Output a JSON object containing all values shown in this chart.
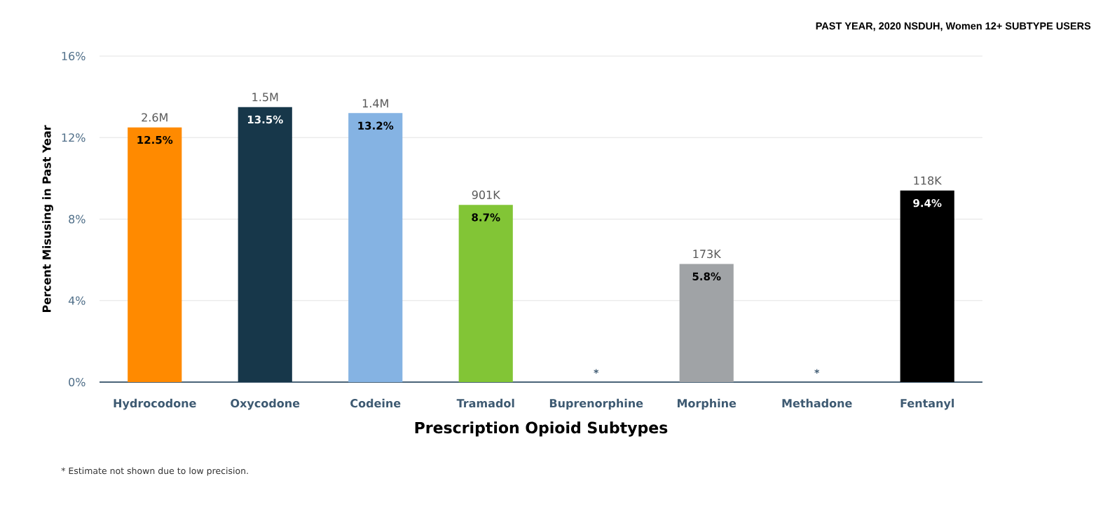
{
  "chart_data": {
    "type": "bar",
    "subtitle": "PAST YEAR, 2020 NSDUH, Women 12+ SUBTYPE USERS",
    "xlabel": "Prescription Opioid Subtypes",
    "ylabel": "Percent Misusing in Past Year",
    "categories": [
      "Hydrocodone",
      "Oxycodone",
      "Codeine",
      "Tramadol",
      "Buprenorphine",
      "Morphine",
      "Methadone",
      "Fentanyl"
    ],
    "values": [
      12.5,
      13.5,
      13.2,
      8.7,
      null,
      5.8,
      null,
      9.4
    ],
    "colors": [
      "#ff8a00",
      "#17374a",
      "#85b3e3",
      "#82c536",
      null,
      "#a0a3a6",
      null,
      "#000000"
    ],
    "value_labels": [
      "12.5%",
      "13.5%",
      "13.2%",
      "8.7%",
      "*",
      "5.8%",
      "*",
      "9.4%"
    ],
    "ylim": [
      0,
      16
    ],
    "yticks": [
      {
        "value": 0,
        "label": "0%"
      },
      {
        "value": 4,
        "label": "4%"
      },
      {
        "value": 8,
        "label": "8%"
      },
      {
        "value": 12,
        "label": "12%"
      },
      {
        "value": 16,
        "label": "16%"
      }
    ],
    "grid": "y",
    "annotations": [
      {
        "text": "2.6M",
        "x": "Hydrocodone",
        "y": 12.5
      },
      {
        "text": "1.5M",
        "x": "Oxycodone",
        "y": 13.5
      },
      {
        "text": "1.4M",
        "x": "Codeine",
        "y": 13.2
      },
      {
        "text": "901K",
        "x": "Tramadol",
        "y": 8.7
      },
      {
        "text": "173K",
        "x": "Morphine",
        "y": 5.8
      },
      {
        "text": "118K",
        "x": "Fentanyl",
        "y": 9.4
      },
      "* Estimate not shown due to low precision."
    ]
  }
}
